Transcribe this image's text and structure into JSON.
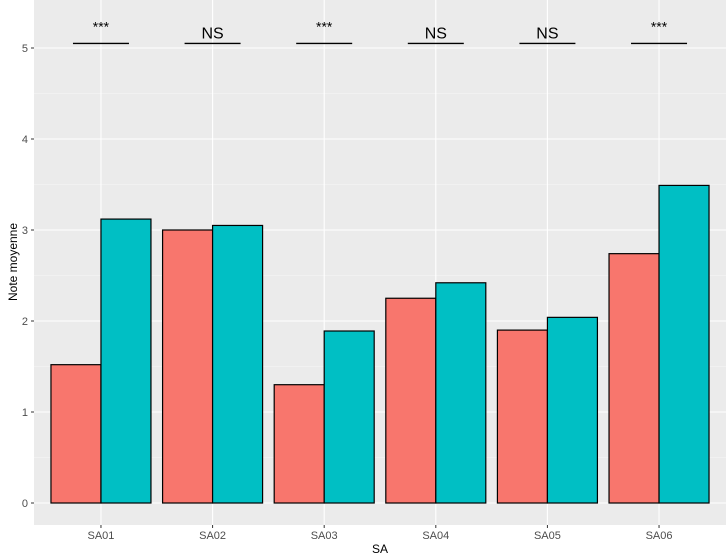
{
  "chart_data": {
    "type": "bar",
    "title": "",
    "xlabel": "SA",
    "ylabel": "Note moyenne",
    "categories": [
      "SA01",
      "SA02",
      "SA03",
      "SA04",
      "SA05",
      "SA06"
    ],
    "series": [
      {
        "values": [
          1.52,
          3.0,
          1.3,
          2.25,
          1.9,
          2.74
        ]
      },
      {
        "values": [
          3.12,
          3.05,
          1.89,
          2.42,
          2.04,
          3.49
        ]
      }
    ],
    "significance": [
      "***",
      "NS",
      "***",
      "NS",
      "NS",
      "***"
    ],
    "significance_level": 5.05,
    "ylim": [
      -0.2,
      5.4
    ],
    "yticks": [
      0,
      1,
      2,
      3,
      4,
      5
    ],
    "grid": true,
    "legend": "none",
    "colors": {
      "series": [
        "#f8766d",
        "#00bfc4"
      ],
      "panel": "#ebebeb",
      "grid_major": "#ffffff",
      "bar_outline": "#000000"
    }
  }
}
